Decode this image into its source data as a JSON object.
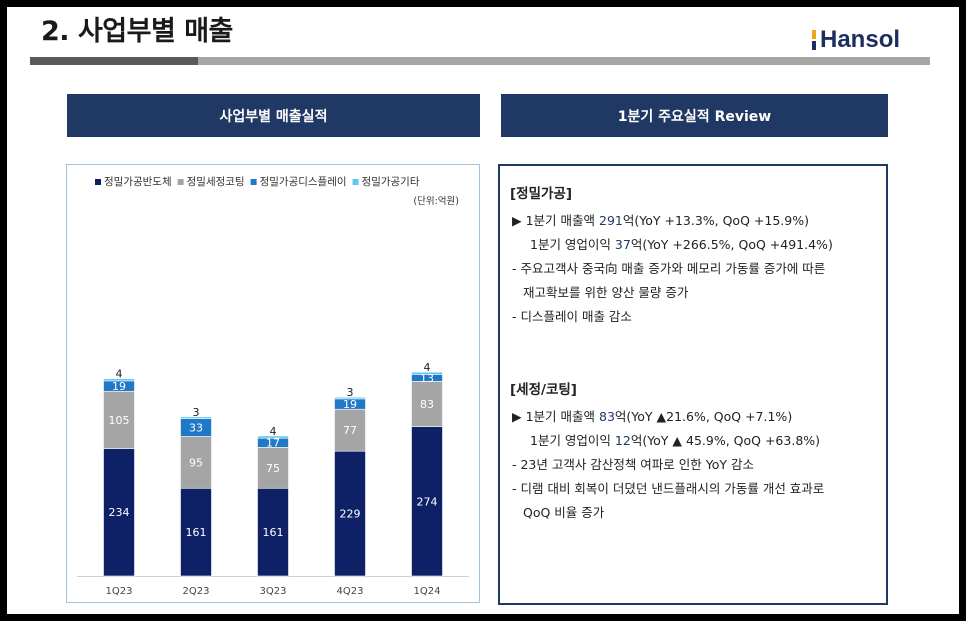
{
  "header": {
    "title": "2. 사업부별 매출",
    "logo": "Hansol"
  },
  "panels": {
    "left_title": "사업부별 매출실적",
    "right_title": "1분기 주요실적 Review"
  },
  "chart_data": {
    "type": "bar",
    "stacked": true,
    "categories": [
      "1Q23",
      "2Q23",
      "3Q23",
      "4Q23",
      "1Q24"
    ],
    "series": [
      {
        "name": "정밀가공반도체",
        "values": [
          234,
          161,
          161,
          229,
          274
        ],
        "color": "#0f2166"
      },
      {
        "name": "정밀세정코팅",
        "values": [
          105,
          95,
          75,
          77,
          83
        ],
        "color": "#a5a5a5"
      },
      {
        "name": "정밀가공디스플레이",
        "values": [
          19,
          33,
          17,
          19,
          13
        ],
        "color": "#1f78c8"
      },
      {
        "name": "정밀가공기타",
        "values": [
          4,
          3,
          4,
          3,
          4
        ],
        "color": "#5ec8f2"
      }
    ],
    "unit_label": "(단위:억원)",
    "legend_position": "top",
    "ylim": [
      0,
      400
    ],
    "grid": false
  },
  "review": {
    "s1": {
      "title": "[정밀가공]",
      "l1": {
        "a": "▶  1분기 매출액 ",
        "n": "291",
        "b": "억(YoY +13.3%, QoQ +15.9%)"
      },
      "l2": {
        "a": "1분기 영업이익 ",
        "n": "37",
        "b": "억(YoY +266.5%, QoQ +491.4%)"
      },
      "b1": "-  주요고객사 중국向 매출 증가와 메모리 가동률 증가에 따른",
      "b1b": "재고확보를 위한 양산 물량 증가",
      "b2": "-  디스플레이 매출 감소"
    },
    "s2": {
      "title": "[세정/코팅]",
      "l1": {
        "a": "▶  1분기 매출액 ",
        "n": "83",
        "b": "억(YoY ▲21.6%, QoQ +7.1%)"
      },
      "l2": {
        "a": "1분기 영업이익 ",
        "n": "12",
        "b": "억(YoY ▲ 45.9%, QoQ +63.8%)"
      },
      "b1": "-  23년 고객사 감산정책 여파로 인한 YoY 감소",
      "b2": "-  디램 대비 회복이 더뎠던 낸드플래시의 가동률 개선 효과로",
      "b2b": "QoQ 비율 증가"
    }
  }
}
